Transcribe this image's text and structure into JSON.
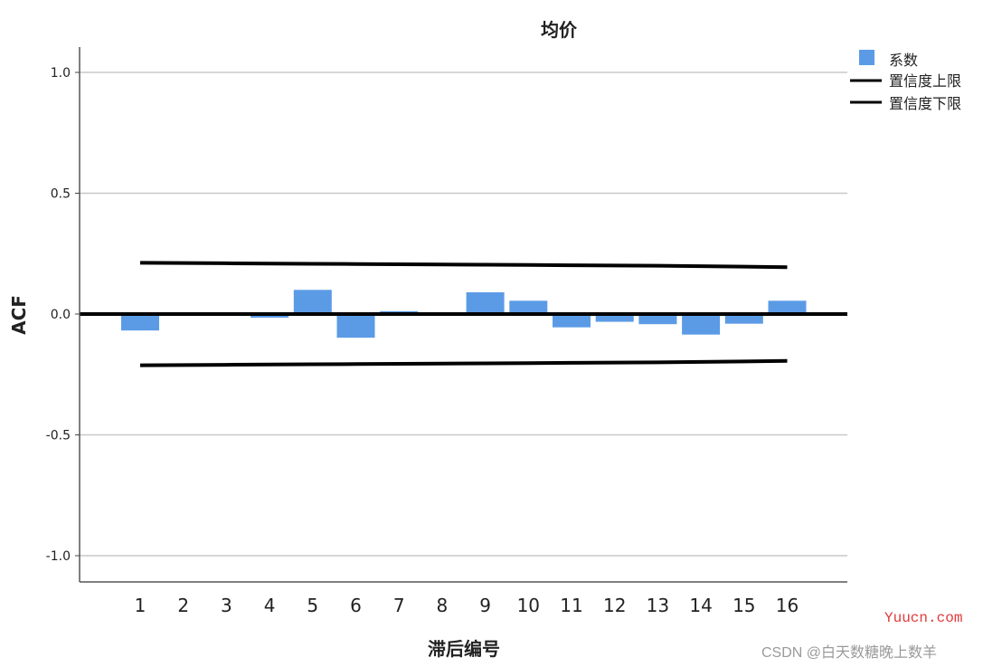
{
  "chart_data": {
    "type": "bar",
    "title": "均价",
    "xlabel": "滞后编号",
    "ylabel": "ACF",
    "categories": [
      "1",
      "2",
      "3",
      "4",
      "5",
      "6",
      "7",
      "8",
      "9",
      "10",
      "11",
      "12",
      "13",
      "14",
      "15",
      "16"
    ],
    "series": [
      {
        "name": "系数",
        "color": "#5b9be6",
        "values": [
          -0.068,
          -0.002,
          0.0,
          -0.015,
          0.1,
          -0.098,
          0.012,
          0.002,
          0.09,
          0.055,
          -0.055,
          -0.032,
          -0.042,
          -0.085,
          -0.04,
          0.055
        ]
      }
    ],
    "confidence_upper": {
      "name": "置信度上限",
      "values": [
        0.212,
        0.211,
        0.21,
        0.209,
        0.208,
        0.207,
        0.206,
        0.205,
        0.204,
        0.203,
        0.202,
        0.201,
        0.2,
        0.198,
        0.196,
        0.194
      ]
    },
    "confidence_lower": {
      "name": "置信度下限",
      "values": [
        -0.212,
        -0.211,
        -0.21,
        -0.209,
        -0.208,
        -0.207,
        -0.206,
        -0.205,
        -0.204,
        -0.203,
        -0.202,
        -0.201,
        -0.2,
        -0.198,
        -0.196,
        -0.194
      ]
    },
    "yticks": [
      "1.0",
      "0.5",
      "0.0",
      "-0.5",
      "-1.0"
    ],
    "ytick_values": [
      1.0,
      0.5,
      0.0,
      -0.5,
      -1.0
    ],
    "ylim": [
      -1.1,
      1.1
    ],
    "grid": true,
    "legend_position": "top-right"
  },
  "watermarks": [
    "Yuucn.com",
    "CSDN @白天数糖晚上数羊"
  ]
}
